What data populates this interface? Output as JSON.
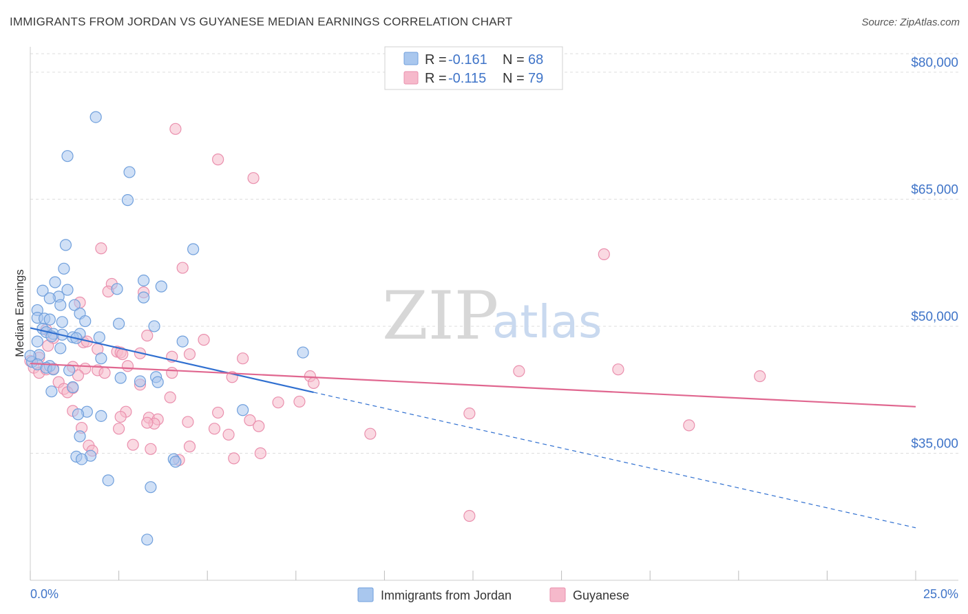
{
  "title": "IMMIGRANTS FROM JORDAN VS GUYANESE MEDIAN EARNINGS CORRELATION CHART",
  "source": "Source: ZipAtlas.com",
  "watermark": {
    "zip": "ZIP",
    "atlas": "atlas"
  },
  "colors": {
    "jordan": "#a9c7ee",
    "jordan_stroke": "#6f9fdc",
    "jordan_line": "#2f6fd0",
    "guyanese": "#f6b9cb",
    "guyanese_stroke": "#ea8fad",
    "guyanese_line": "#e0668f",
    "tick_text": "#3f74c8",
    "grid": "#dddddd"
  },
  "legend": {
    "rows": [
      {
        "r_label": "R = ",
        "r_value": "-0.161",
        "n_label": "N = ",
        "n_value": "68"
      },
      {
        "r_label": "R = ",
        "r_value": "-0.115",
        "n_label": "N = ",
        "n_value": "79"
      }
    ]
  },
  "bottom_legend": {
    "jordan": "Immigrants from Jordan",
    "guyanese": "Guyanese"
  },
  "chart_data": {
    "type": "scatter",
    "title": "IMMIGRANTS FROM JORDAN VS GUYANESE MEDIAN EARNINGS CORRELATION CHART",
    "xlabel": "",
    "ylabel": "Median Earnings",
    "xlim": [
      0,
      25
    ],
    "ylim": [
      20000,
      83000
    ],
    "x_tick_labels": [
      "0.0%",
      "25.0%"
    ],
    "y_ticks": [
      35000,
      50000,
      65000,
      80000
    ],
    "y_tick_labels": [
      "$35,000",
      "$50,000",
      "$65,000",
      "$80,000"
    ],
    "grid": "horizontal dashed",
    "legend_position": "top-center",
    "series": [
      {
        "name": "Immigrants from Jordan",
        "trend": {
          "x": [
            0.0,
            8.0
          ],
          "y": [
            49800,
            42200
          ],
          "dashed_extension_to": [
            25.0,
            26200
          ]
        },
        "points": [
          [
            1.85,
            74700
          ],
          [
            1.05,
            70100
          ],
          [
            2.8,
            68200
          ],
          [
            2.75,
            64900
          ],
          [
            1.0,
            59600
          ],
          [
            4.6,
            59100
          ],
          [
            0.95,
            56800
          ],
          [
            0.7,
            55200
          ],
          [
            3.2,
            55400
          ],
          [
            3.7,
            54700
          ],
          [
            0.35,
            54200
          ],
          [
            1.05,
            54300
          ],
          [
            2.45,
            54400
          ],
          [
            0.8,
            53500
          ],
          [
            0.55,
            53300
          ],
          [
            3.2,
            53400
          ],
          [
            0.85,
            52500
          ],
          [
            1.25,
            52500
          ],
          [
            0.2,
            51900
          ],
          [
            1.4,
            51500
          ],
          [
            0.2,
            51000
          ],
          [
            0.4,
            50900
          ],
          [
            0.55,
            50800
          ],
          [
            1.55,
            50600
          ],
          [
            0.9,
            50500
          ],
          [
            2.5,
            50300
          ],
          [
            3.5,
            50000
          ],
          [
            0.35,
            49700
          ],
          [
            0.45,
            49300
          ],
          [
            0.65,
            49100
          ],
          [
            1.4,
            49100
          ],
          [
            0.9,
            49000
          ],
          [
            0.6,
            48800
          ],
          [
            1.2,
            48700
          ],
          [
            1.3,
            48600
          ],
          [
            1.95,
            48700
          ],
          [
            0.2,
            48200
          ],
          [
            4.3,
            48200
          ],
          [
            0.85,
            47400
          ],
          [
            7.7,
            46900
          ],
          [
            0.25,
            46600
          ],
          [
            2.0,
            46200
          ],
          [
            0.05,
            45800
          ],
          [
            0.2,
            45500
          ],
          [
            0.55,
            45300
          ],
          [
            0.45,
            45100
          ],
          [
            0.65,
            44900
          ],
          [
            1.1,
            44800
          ],
          [
            2.55,
            43900
          ],
          [
            3.55,
            44000
          ],
          [
            3.1,
            43500
          ],
          [
            3.6,
            43400
          ],
          [
            1.2,
            42800
          ],
          [
            0.6,
            42300
          ],
          [
            6.0,
            40100
          ],
          [
            1.6,
            39900
          ],
          [
            1.35,
            39600
          ],
          [
            2.0,
            39400
          ],
          [
            1.4,
            37000
          ],
          [
            1.3,
            34600
          ],
          [
            1.7,
            34700
          ],
          [
            1.45,
            34300
          ],
          [
            4.05,
            34300
          ],
          [
            4.1,
            34000
          ],
          [
            2.2,
            31800
          ],
          [
            3.4,
            31000
          ],
          [
            3.3,
            24800
          ],
          [
            0.0,
            46500
          ]
        ]
      },
      {
        "name": "Guyanese",
        "trend": {
          "x": [
            0.0,
            25.0
          ],
          "y": [
            45600,
            40500
          ]
        },
        "points": [
          [
            4.1,
            73300
          ],
          [
            5.3,
            69700
          ],
          [
            6.3,
            67500
          ],
          [
            16.2,
            58500
          ],
          [
            2.0,
            59200
          ],
          [
            4.3,
            56900
          ],
          [
            2.3,
            55000
          ],
          [
            2.2,
            54100
          ],
          [
            3.2,
            54000
          ],
          [
            1.4,
            52800
          ],
          [
            0.45,
            49600
          ],
          [
            0.65,
            48600
          ],
          [
            3.3,
            48900
          ],
          [
            1.5,
            48100
          ],
          [
            1.6,
            48200
          ],
          [
            4.9,
            48400
          ],
          [
            1.9,
            47300
          ],
          [
            0.5,
            47700
          ],
          [
            2.45,
            47000
          ],
          [
            2.55,
            46900
          ],
          [
            2.6,
            46700
          ],
          [
            3.1,
            46800
          ],
          [
            4.0,
            46400
          ],
          [
            4.5,
            46700
          ],
          [
            6.0,
            46200
          ],
          [
            0.25,
            46300
          ],
          [
            0.0,
            45900
          ],
          [
            0.1,
            45100
          ],
          [
            0.65,
            45000
          ],
          [
            1.2,
            45200
          ],
          [
            1.55,
            45000
          ],
          [
            1.9,
            44800
          ],
          [
            2.1,
            44500
          ],
          [
            2.75,
            45300
          ],
          [
            0.25,
            44500
          ],
          [
            0.45,
            44900
          ],
          [
            1.35,
            44200
          ],
          [
            4.0,
            44500
          ],
          [
            5.7,
            44000
          ],
          [
            7.9,
            44100
          ],
          [
            13.8,
            44700
          ],
          [
            16.6,
            44900
          ],
          [
            20.6,
            44100
          ],
          [
            8.0,
            43300
          ],
          [
            3.1,
            43100
          ],
          [
            1.2,
            42700
          ],
          [
            0.8,
            43400
          ],
          [
            0.95,
            42600
          ],
          [
            1.05,
            42200
          ],
          [
            3.95,
            41600
          ],
          [
            7.0,
            41000
          ],
          [
            7.6,
            41100
          ],
          [
            2.7,
            39900
          ],
          [
            5.3,
            39800
          ],
          [
            12.4,
            39700
          ],
          [
            2.55,
            39300
          ],
          [
            3.35,
            39200
          ],
          [
            3.6,
            39000
          ],
          [
            6.2,
            38900
          ],
          [
            3.5,
            38500
          ],
          [
            4.45,
            38700
          ],
          [
            6.45,
            38200
          ],
          [
            5.2,
            37900
          ],
          [
            2.5,
            37900
          ],
          [
            3.3,
            38600
          ],
          [
            5.6,
            37200
          ],
          [
            9.6,
            37300
          ],
          [
            18.6,
            38300
          ],
          [
            1.65,
            35900
          ],
          [
            2.9,
            36000
          ],
          [
            3.4,
            35500
          ],
          [
            4.5,
            35800
          ],
          [
            1.75,
            35300
          ],
          [
            6.5,
            35000
          ],
          [
            5.75,
            34400
          ],
          [
            4.2,
            34200
          ],
          [
            12.4,
            27600
          ],
          [
            1.45,
            38000
          ],
          [
            1.2,
            40000
          ]
        ]
      }
    ]
  }
}
